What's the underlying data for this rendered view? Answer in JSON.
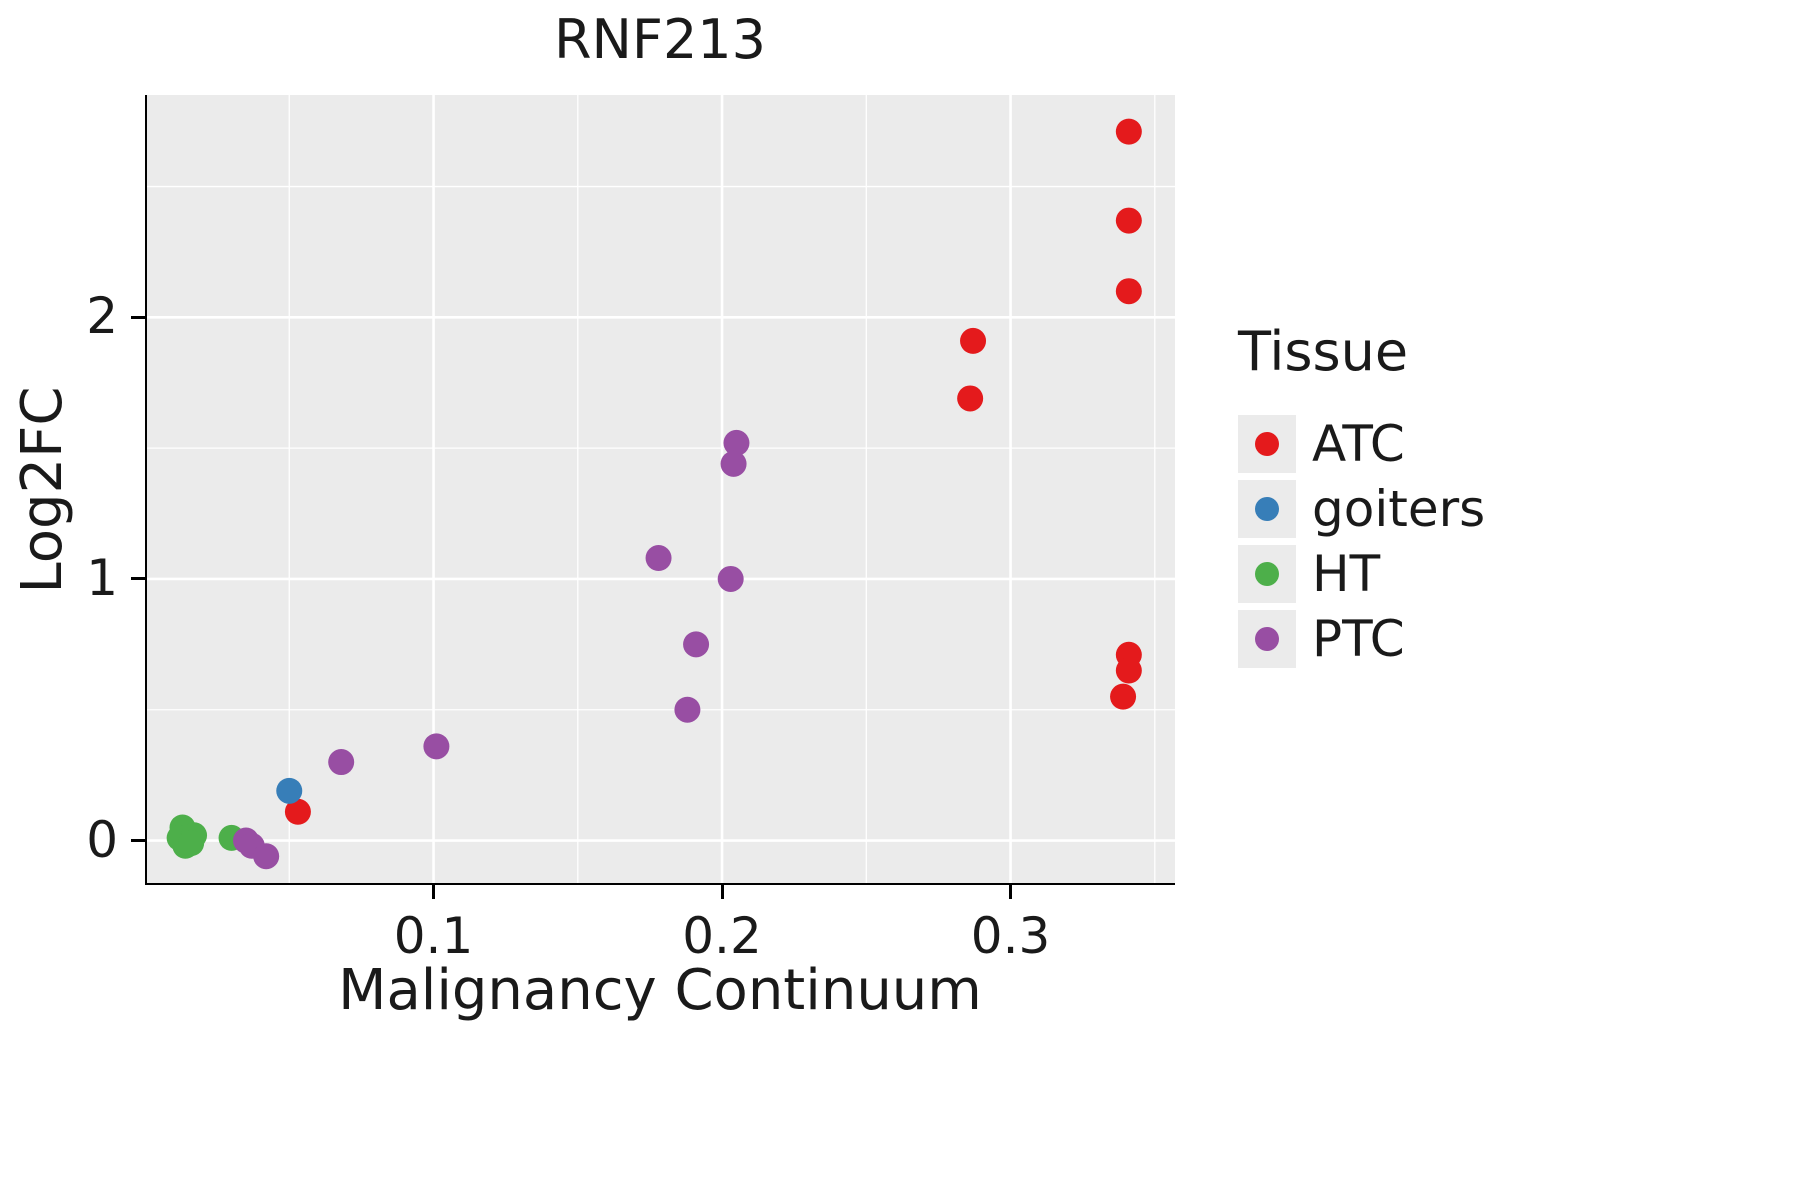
{
  "title": "RNF213",
  "axes": {
    "x_label": "Malignancy Continuum",
    "y_label": "Log2FC",
    "x_ticks": [
      "0.1",
      "0.2",
      "0.3"
    ],
    "y_ticks": [
      "0",
      "1",
      "2"
    ]
  },
  "legend": {
    "title": "Tissue",
    "entries": [
      {
        "label": "ATC",
        "color": "#E41A1C"
      },
      {
        "label": "goiters",
        "color": "#377EB8"
      },
      {
        "label": "HT",
        "color": "#4DAF4A"
      },
      {
        "label": "PTC",
        "color": "#984EA3"
      }
    ]
  },
  "chart_data": {
    "type": "scatter",
    "title": "RNF213",
    "xlabel": "Malignancy Continuum",
    "ylabel": "Log2FC",
    "xlim": [
      0,
      0.357
    ],
    "ylim": [
      -0.17,
      2.85
    ],
    "x_major": [
      0.1,
      0.2,
      0.3
    ],
    "x_minor": [
      0.05,
      0.15,
      0.25,
      0.35
    ],
    "y_major": [
      0,
      1,
      2
    ],
    "y_minor": [
      0.5,
      1.5,
      2.5
    ],
    "grid": true,
    "legend_position": "right",
    "panel_background": "#EBEBEB",
    "grid_color": "#FFFFFF",
    "point_radius_px": 13,
    "series": [
      {
        "name": "ATC",
        "color": "#E41A1C",
        "points": [
          [
            0.341,
            2.71
          ],
          [
            0.341,
            2.37
          ],
          [
            0.341,
            2.1
          ],
          [
            0.287,
            1.91
          ],
          [
            0.286,
            1.69
          ],
          [
            0.341,
            0.71
          ],
          [
            0.341,
            0.65
          ],
          [
            0.339,
            0.55
          ],
          [
            0.053,
            0.11
          ]
        ]
      },
      {
        "name": "goiters",
        "color": "#377EB8",
        "points": [
          [
            0.05,
            0.19
          ]
        ]
      },
      {
        "name": "HT",
        "color": "#4DAF4A",
        "points": [
          [
            0.013,
            0.05
          ],
          [
            0.012,
            0.01
          ],
          [
            0.014,
            -0.02
          ],
          [
            0.017,
            0.02
          ],
          [
            0.016,
            -0.01
          ],
          [
            0.03,
            0.01
          ]
        ]
      },
      {
        "name": "PTC",
        "color": "#984EA3",
        "points": [
          [
            0.035,
            0.0
          ],
          [
            0.037,
            -0.02
          ],
          [
            0.042,
            -0.06
          ],
          [
            0.068,
            0.3
          ],
          [
            0.101,
            0.36
          ],
          [
            0.178,
            1.08
          ],
          [
            0.188,
            0.5
          ],
          [
            0.191,
            0.75
          ],
          [
            0.203,
            1.0
          ],
          [
            0.205,
            1.52
          ],
          [
            0.204,
            1.44
          ]
        ]
      }
    ]
  }
}
